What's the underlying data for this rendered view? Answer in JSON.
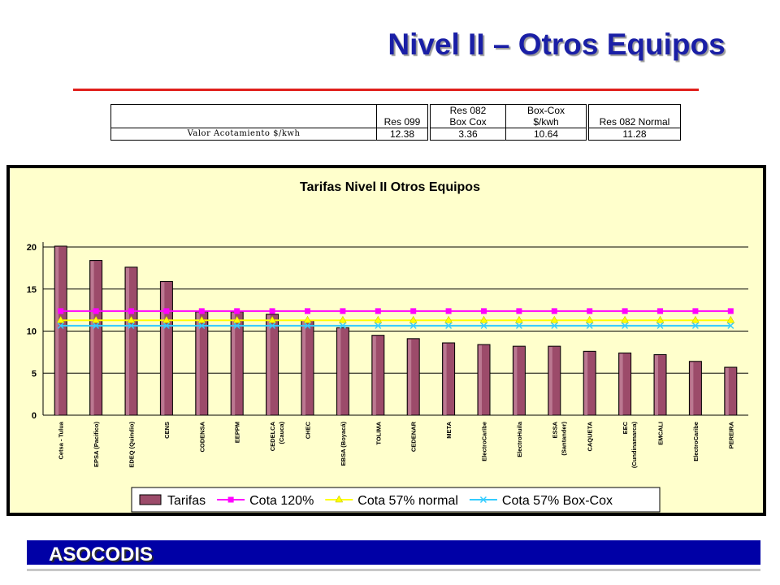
{
  "slide": {
    "title": "Nivel II – Otros Equipos",
    "footer": "ASOCODIS"
  },
  "table": {
    "headers": {
      "res099": [
        "",
        "Res 099"
      ],
      "res082boxcox": [
        "Res 082",
        "Box Cox"
      ],
      "boxcox": [
        "Box-Cox",
        "$/kwh"
      ],
      "res082normal": [
        "",
        "Res 082 Normal"
      ]
    },
    "row_label": "Valor Acotamiento $/kwh",
    "values": {
      "res099": "12.38",
      "res082boxcox": "3.36",
      "boxcox": "10.64",
      "res082normal": "11.28"
    }
  },
  "chart_data": {
    "type": "bar",
    "title": "Tarifas Nivel II Otros Equipos",
    "xlabel": "",
    "ylabel": "",
    "ylim": [
      0,
      20
    ],
    "yticks": [
      "0",
      "5",
      "10",
      "15",
      "20"
    ],
    "grid": true,
    "legend_position": "bottom",
    "categories": [
      [
        "Cetsa - Tulua"
      ],
      [
        "EPSA (Pacifico)"
      ],
      [
        "EDEQ (Quindio)"
      ],
      [
        "CENS"
      ],
      [
        "CODENSA"
      ],
      [
        "EEPPM"
      ],
      [
        "CEDELCA",
        "(Cauca)"
      ],
      [
        "CHEC"
      ],
      [
        "EBSA (Boyacá)"
      ],
      [
        "TOLIMA"
      ],
      [
        "CEDENAR"
      ],
      [
        "META"
      ],
      [
        "ElectroCaribe"
      ],
      [
        "ElectroHuila"
      ],
      [
        "ESSA",
        "(Santander)"
      ],
      [
        "CAQUETA"
      ],
      [
        "EEC",
        "(Cundinamarca)"
      ],
      [
        "EMCALI"
      ],
      [
        "ElectroCaribe"
      ],
      [
        "PEREIRA"
      ]
    ],
    "series": [
      {
        "name": "Tarifas",
        "kind": "bar",
        "color": "#9c4b6a",
        "values": [
          20.1,
          18.4,
          17.6,
          15.9,
          12.3,
          12.3,
          12.0,
          11.3,
          10.4,
          9.5,
          9.1,
          8.6,
          8.4,
          8.2,
          8.2,
          7.6,
          7.4,
          7.2,
          6.4,
          5.7
        ]
      },
      {
        "name": "Cota 120%",
        "kind": "line",
        "color": "#ff00ff",
        "values": [
          12.38,
          12.38,
          12.38,
          12.38,
          12.38,
          12.38,
          12.38,
          12.38,
          12.38,
          12.38,
          12.38,
          12.38,
          12.38,
          12.38,
          12.38,
          12.38,
          12.38,
          12.38,
          12.38,
          12.38
        ]
      },
      {
        "name": "Cota 57% normal",
        "kind": "line",
        "color": "#ffff00",
        "values": [
          11.28,
          11.28,
          11.28,
          11.28,
          11.28,
          11.28,
          11.28,
          11.28,
          11.28,
          11.28,
          11.28,
          11.28,
          11.28,
          11.28,
          11.28,
          11.28,
          11.28,
          11.28,
          11.28,
          11.28
        ]
      },
      {
        "name": "Cota 57% Box-Cox",
        "kind": "line",
        "color": "#33ccff",
        "values": [
          10.64,
          10.64,
          10.64,
          10.64,
          10.64,
          10.64,
          10.64,
          10.64,
          10.64,
          10.64,
          10.64,
          10.64,
          10.64,
          10.64,
          10.64,
          10.64,
          10.64,
          10.64,
          10.64,
          10.64
        ]
      }
    ]
  }
}
